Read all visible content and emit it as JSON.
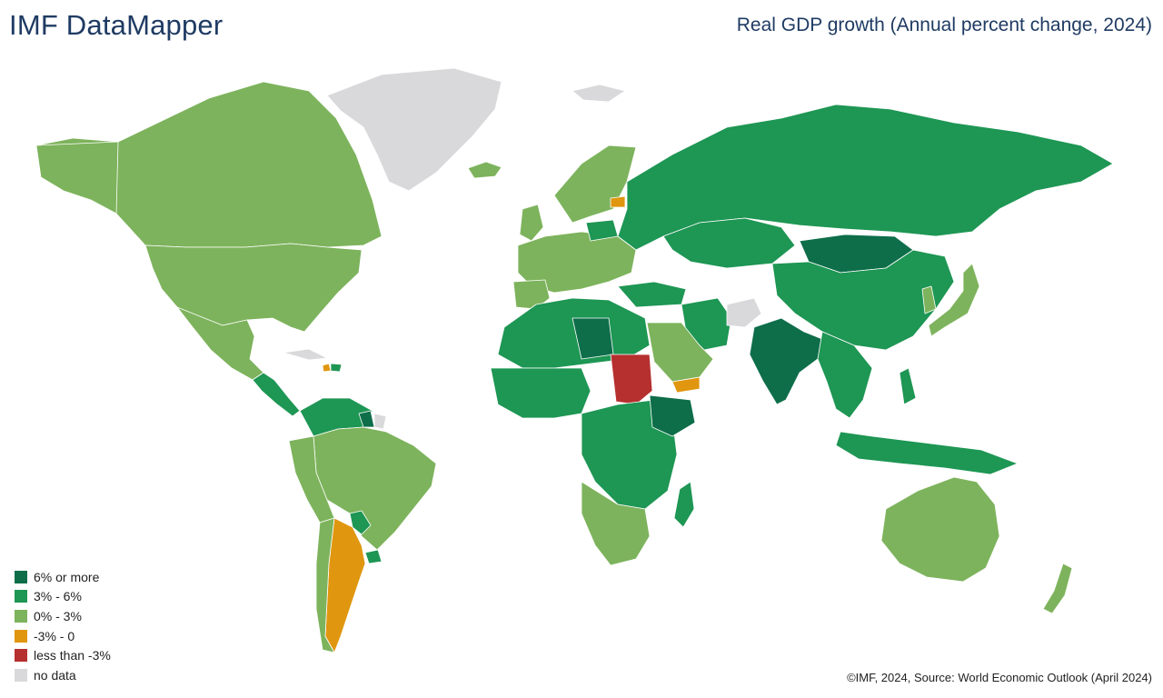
{
  "header": {
    "app_title": "IMF DataMapper",
    "map_title": "Real GDP growth (Annual percent change, 2024)"
  },
  "legend": [
    {
      "label": "6% or more",
      "color": "#0e6e4a"
    },
    {
      "label": "3% - 6%",
      "color": "#1e9654"
    },
    {
      "label": "0% - 3%",
      "color": "#7db35c"
    },
    {
      "label": "-3% - 0",
      "color": "#e0960f"
    },
    {
      "label": "less than -3%",
      "color": "#b5302f"
    },
    {
      "label": "no data",
      "color": "#d9d9dc"
    }
  ],
  "footer": {
    "source": "©IMF, 2024, Source: World Economic Outlook (April 2024)"
  }
}
